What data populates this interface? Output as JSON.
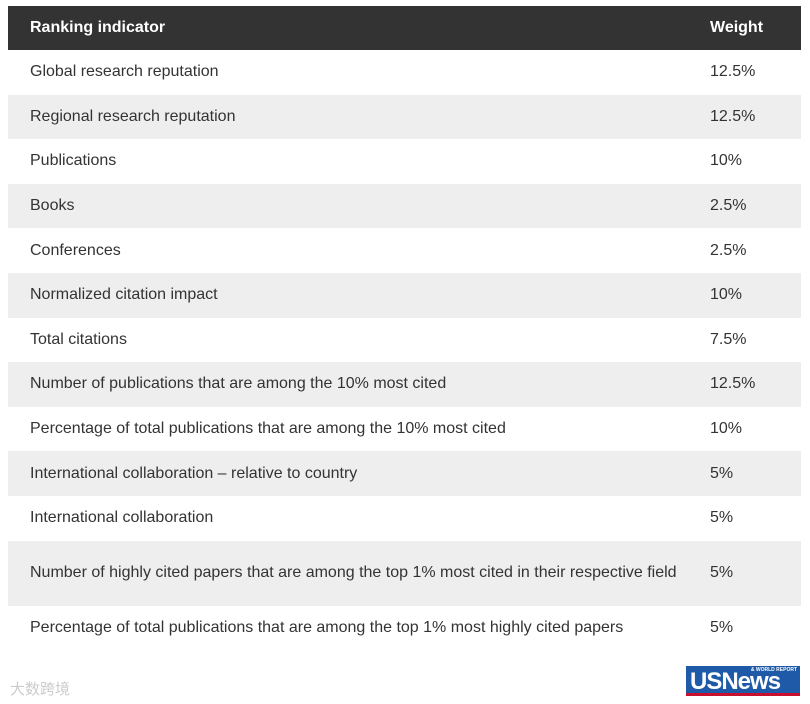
{
  "table": {
    "header": [
      "Ranking indicator",
      "Weight"
    ],
    "rows": [
      [
        "Global research reputation",
        "12.5%"
      ],
      [
        "Regional research reputation",
        "12.5%"
      ],
      [
        "Publications",
        "10%"
      ],
      [
        "Books",
        "2.5%"
      ],
      [
        "Conferences",
        "2.5%"
      ],
      [
        "Normalized citation impact",
        "10%"
      ],
      [
        "Total citations",
        "7.5%"
      ],
      [
        "Number of publications that are among the 10% most cited",
        "12.5%"
      ],
      [
        "Percentage of total publications that are among the 10% most cited",
        "10%"
      ],
      [
        "International collaboration – relative to country",
        "5%"
      ],
      [
        "International collaboration",
        "5%"
      ],
      [
        "Number of highly cited papers that are among the top 1% most cited in their respective field",
        "5%"
      ],
      [
        "Percentage of total publications that are among the top 1% most highly cited papers",
        "5%"
      ]
    ]
  },
  "footer": {
    "watermark": "大数跨境",
    "logo": "USNews",
    "logo_sub": "& WORLD REPORT"
  }
}
